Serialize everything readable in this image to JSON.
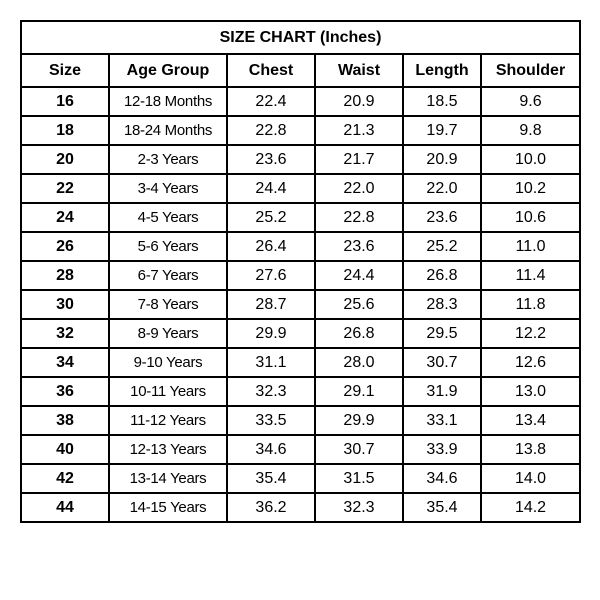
{
  "title": "SIZE CHART (Inches)",
  "columns": [
    "Size",
    "Age Group",
    "Chest",
    "Waist",
    "Length",
    "Shoulder"
  ],
  "rows": [
    [
      "16",
      "12-18 Months",
      "22.4",
      "20.9",
      "18.5",
      "9.6"
    ],
    [
      "18",
      "18-24 Months",
      "22.8",
      "21.3",
      "19.7",
      "9.8"
    ],
    [
      "20",
      "2-3 Years",
      "23.6",
      "21.7",
      "20.9",
      "10.0"
    ],
    [
      "22",
      "3-4 Years",
      "24.4",
      "22.0",
      "22.0",
      "10.2"
    ],
    [
      "24",
      "4-5 Years",
      "25.2",
      "22.8",
      "23.6",
      "10.6"
    ],
    [
      "26",
      "5-6 Years",
      "26.4",
      "23.6",
      "25.2",
      "11.0"
    ],
    [
      "28",
      "6-7 Years",
      "27.6",
      "24.4",
      "26.8",
      "11.4"
    ],
    [
      "30",
      "7-8 Years",
      "28.7",
      "25.6",
      "28.3",
      "11.8"
    ],
    [
      "32",
      "8-9 Years",
      "29.9",
      "26.8",
      "29.5",
      "12.2"
    ],
    [
      "34",
      "9-10 Years",
      "31.1",
      "28.0",
      "30.7",
      "12.6"
    ],
    [
      "36",
      "10-11 Years",
      "32.3",
      "29.1",
      "31.9",
      "13.0"
    ],
    [
      "38",
      "11-12 Years",
      "33.5",
      "29.9",
      "33.1",
      "13.4"
    ],
    [
      "40",
      "12-13 Years",
      "34.6",
      "30.7",
      "33.9",
      "13.8"
    ],
    [
      "42",
      "13-14 Years",
      "35.4",
      "31.5",
      "34.6",
      "14.0"
    ],
    [
      "44",
      "14-15 Years",
      "36.2",
      "32.3",
      "35.4",
      "14.2"
    ]
  ]
}
